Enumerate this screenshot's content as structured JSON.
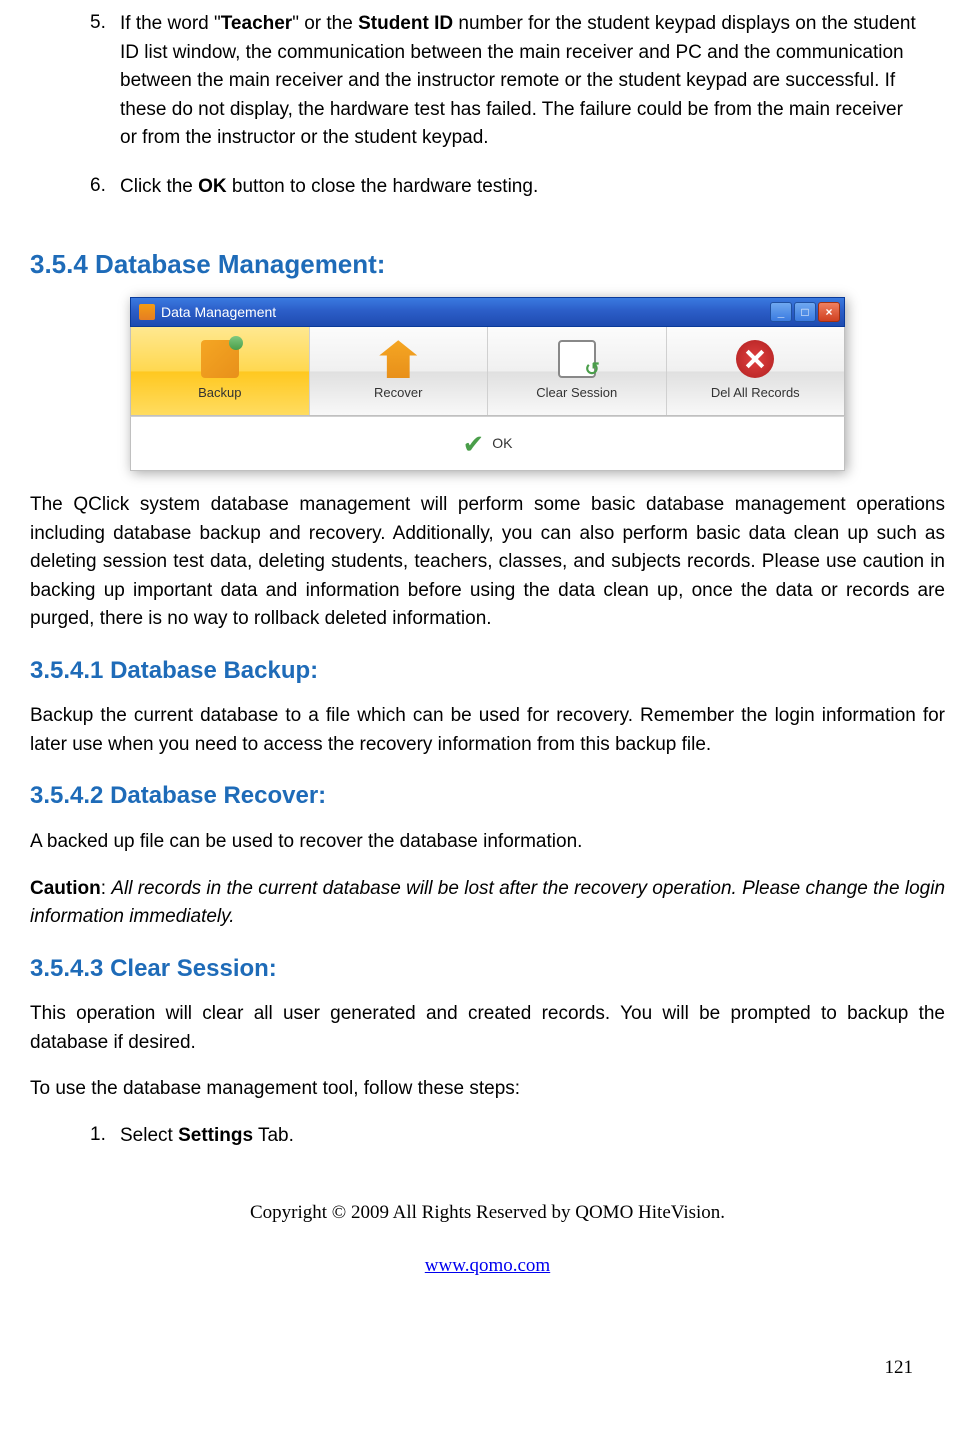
{
  "colors": {
    "heading": "#1e6bb8",
    "body": "#000000",
    "titlebar_start": "#3a7ae0",
    "titlebar_end": "#1e4bb0",
    "active_btn": "#ffd850",
    "link": "#0000ee"
  },
  "list_top": {
    "items": [
      {
        "num": "5.",
        "pre": "If the word \"",
        "b1": "Teacher",
        "mid1": "\" or the ",
        "b2": "Student ID",
        "rest": " number for the student keypad displays on the student ID list window, the communication between the main receiver and PC and the communication between the main receiver and the instructor remote or the student keypad are successful. If these do not display, the hardware test has failed. The failure could be from the main receiver or from the instructor or the student keypad."
      },
      {
        "num": "6.",
        "pre": "Click the ",
        "b1": "OK",
        "rest": " button to close the hardware testing."
      }
    ]
  },
  "sections": {
    "s354": "3.5.4 Database Management:",
    "s3541": "3.5.4.1 Database Backup:",
    "s3542": "3.5.4.2 Database Recover:",
    "s3543": "3.5.4.3 Clear Session:"
  },
  "dm_window": {
    "title": "Data Management",
    "buttons": [
      {
        "label": "Backup",
        "icon": "backup",
        "active": true
      },
      {
        "label": "Recover",
        "icon": "recover",
        "active": false
      },
      {
        "label": "Clear Session",
        "icon": "clear",
        "active": false
      },
      {
        "label": "Del All Records",
        "icon": "del",
        "active": false
      }
    ],
    "ok": "OK"
  },
  "paragraphs": {
    "p_intro": "The QClick system database management will perform some basic database management operations including database backup and recovery. Additionally, you can also perform basic data clean up such as deleting session test data, deleting students, teachers, classes, and subjects records. Please use caution in backing up important data and information before using the data clean up, once the data or records are purged, there is no way to rollback deleted information.",
    "p_backup": "Backup the current database to a file which can be used for recovery. Remember the login information for later use when you need to access the recovery information from this backup file.",
    "p_recover": "A backed up file can be used to recover the database information.",
    "p_caution_label": "Caution",
    "p_caution_sep": ": ",
    "p_caution_text": "All records in the current database will be lost after the recovery operation.  Please change the login information immediately.",
    "p_clear": "This operation will clear all user generated and created records. You will be prompted to backup the database if desired.",
    "p_steps": "To use the database management tool, follow these steps:"
  },
  "list_bottom": {
    "items": [
      {
        "num": "1.",
        "pre": "Select ",
        "b1": "Settings",
        "rest": " Tab."
      }
    ]
  },
  "footer": {
    "copyright": "Copyright © 2009 All Rights Reserved by QOMO HiteVision.",
    "url": "www.qomo.com",
    "page": "121"
  }
}
